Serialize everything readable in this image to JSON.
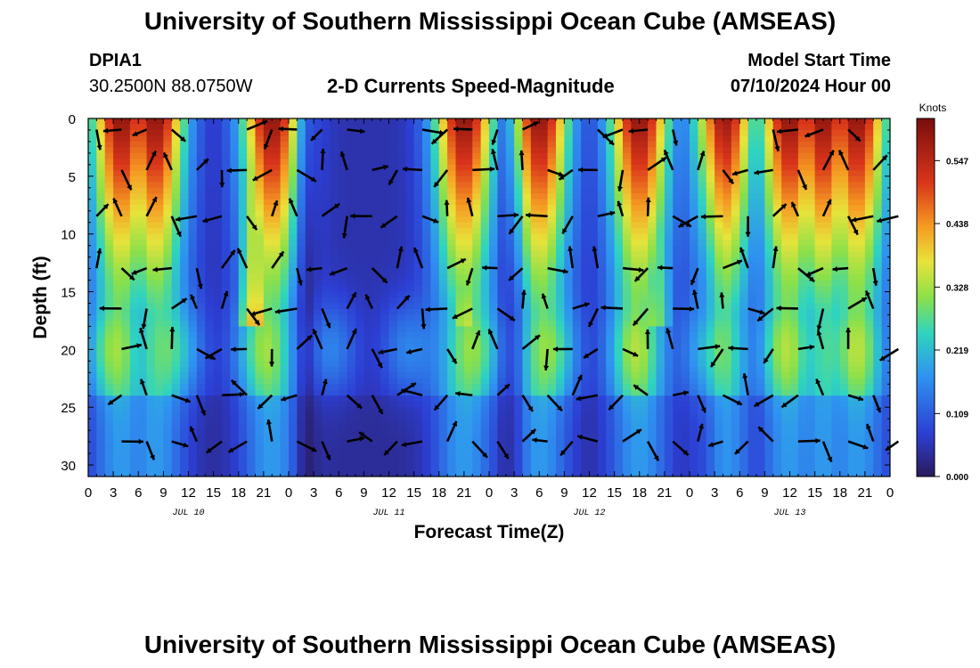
{
  "header": {
    "title": "University of Southern Mississippi Ocean Cube (AMSEAS)",
    "station_id": "DPIA1",
    "station_coords": "30.2500N  88.0750W",
    "plot_title": "2-D Currents Speed-Magnitude",
    "model_start_label": "Model Start Time",
    "model_start_value": "07/10/2024 Hour 00"
  },
  "footer": {
    "title": "University of Southern Mississippi Ocean Cube (AMSEAS)"
  },
  "chart_data": {
    "type": "heatmap",
    "title": "2-D Currents Speed-Magnitude",
    "xlabel": "Forecast Time(Z)",
    "ylabel": "Depth (ft)",
    "x_range_hours": [
      0,
      96
    ],
    "y_range_ft": [
      0,
      31
    ],
    "y_ticks": [
      0,
      5,
      10,
      15,
      20,
      25,
      30
    ],
    "x_tick_labels": [
      "0",
      "3",
      "6",
      "9",
      "12",
      "15",
      "18",
      "21",
      "0",
      "3",
      "6",
      "9",
      "12",
      "15",
      "18",
      "21",
      "0",
      "3",
      "6",
      "9",
      "12",
      "15",
      "18",
      "21",
      "0",
      "3",
      "6",
      "9",
      "12",
      "15",
      "18",
      "21",
      "0"
    ],
    "date_labels": [
      "JUL 10",
      "JUL 11",
      "JUL 12",
      "JUL 13"
    ],
    "colorbar": {
      "label": "Knots",
      "ticks": [
        "0.547",
        "0.438",
        "0.328",
        "0.219",
        "0.109",
        "0.000"
      ],
      "range": [
        0,
        0.62
      ]
    },
    "speed_description_knots": {
      "surface_peaks_hours": [
        4,
        8,
        22,
        45,
        54,
        66,
        76,
        84,
        88,
        92
      ],
      "max": 0.6
    }
  }
}
